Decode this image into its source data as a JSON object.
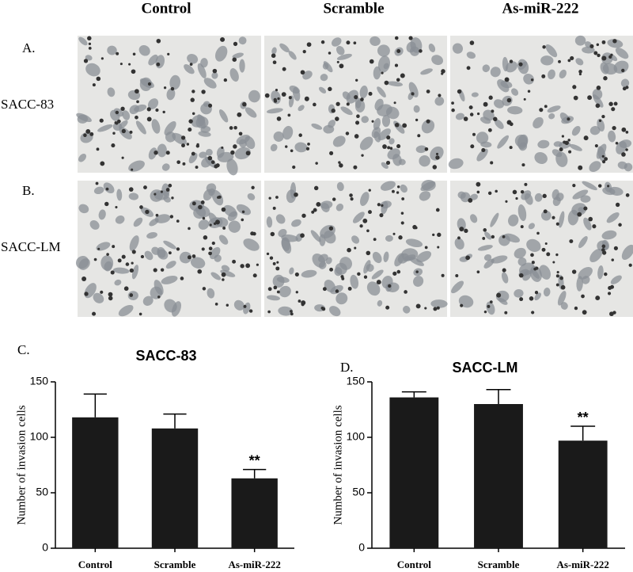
{
  "figure": {
    "columns": [
      "Control",
      "Scramble",
      "As-miR-222"
    ],
    "rows": [
      {
        "label": "A.",
        "name": "SACC-83"
      },
      {
        "label": "B.",
        "name": "SACC-LM"
      }
    ]
  },
  "chart_data": [
    {
      "type": "bar",
      "label": "C.",
      "title": "SACC-83",
      "y_label": "Number of invasion cells",
      "categories": [
        "Control",
        "Scramble",
        "As-miR-222"
      ],
      "values": [
        118,
        108,
        63
      ],
      "errors": [
        21,
        13,
        8
      ],
      "color": "#1a1a1a",
      "ylim": [
        0,
        150
      ],
      "yticks": [
        0,
        50,
        100,
        150
      ],
      "annotations": [
        {
          "category": "As-miR-222",
          "text": "**"
        }
      ]
    },
    {
      "type": "bar",
      "label": "D.",
      "title": "SACC-LM",
      "y_label": "Number of invasion cells",
      "categories": [
        "Control",
        "Scramble",
        "As-miR-222"
      ],
      "values": [
        136,
        130,
        97
      ],
      "errors": [
        5,
        13,
        13
      ],
      "color": "#1a1a1a",
      "ylim": [
        0,
        150
      ],
      "yticks": [
        0,
        50,
        100,
        150
      ],
      "annotations": [
        {
          "category": "As-miR-222",
          "text": "**"
        }
      ]
    }
  ]
}
